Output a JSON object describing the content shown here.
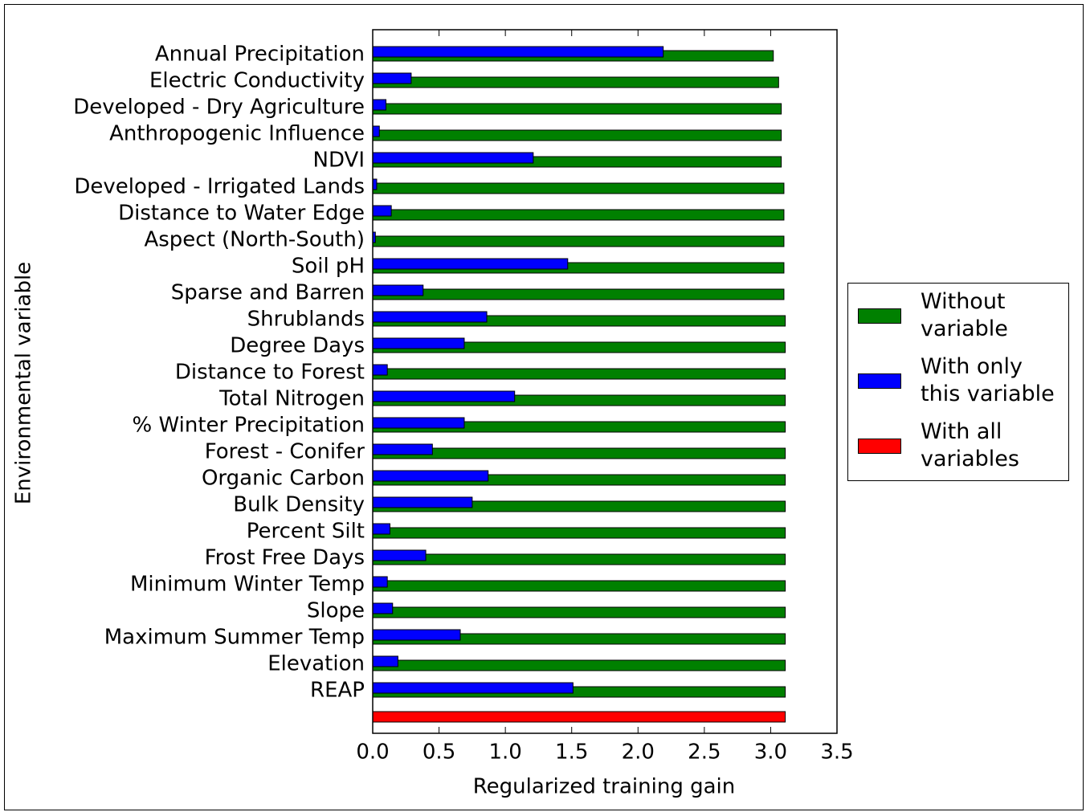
{
  "chart_data": {
    "type": "barh",
    "ylabel": "Environmental variable",
    "xlabel": "Regularized training gain",
    "categories": [
      "Annual Precipitation",
      "Electric Conductivity",
      "Developed - Dry Agriculture",
      "Anthropogenic Influence",
      "NDVI",
      "Developed - Irrigated Lands",
      "Distance to Water Edge",
      "Aspect (North-South)",
      "Soil pH",
      "Sparse and Barren",
      "Shrublands",
      "Degree Days",
      "Distance to Forest",
      "Total Nitrogen",
      "% Winter Precipitation",
      "Forest - Conifer",
      "Organic Carbon",
      "Bulk Density",
      "Percent Silt",
      "Frost Free Days",
      "Minimum Winter Temp",
      "Slope",
      "Maximum Summer Temp",
      "Elevation",
      "REAP",
      null
    ],
    "series": [
      {
        "name": "Without variable",
        "color": "#008000",
        "values": [
          3.02,
          3.06,
          3.08,
          3.08,
          3.08,
          3.1,
          3.1,
          3.1,
          3.1,
          3.1,
          3.11,
          3.11,
          3.11,
          3.11,
          3.11,
          3.11,
          3.11,
          3.11,
          3.11,
          3.11,
          3.11,
          3.11,
          3.11,
          3.11,
          3.11,
          null
        ]
      },
      {
        "name": "With only this variable",
        "color": "#0000ff",
        "values": [
          2.19,
          0.29,
          0.1,
          0.05,
          1.21,
          0.03,
          0.14,
          0.02,
          1.47,
          0.38,
          0.86,
          0.69,
          0.11,
          1.07,
          0.69,
          0.45,
          0.87,
          0.75,
          0.13,
          0.4,
          0.11,
          0.15,
          0.66,
          0.19,
          1.51,
          null
        ]
      },
      {
        "name": "With all variables",
        "color": "#ff0000",
        "values": [
          null,
          null,
          null,
          null,
          null,
          null,
          null,
          null,
          null,
          null,
          null,
          null,
          null,
          null,
          null,
          null,
          null,
          null,
          null,
          null,
          null,
          null,
          null,
          null,
          null,
          3.11
        ]
      }
    ],
    "xlim": [
      0,
      3.5
    ],
    "xticks": [
      {
        "value": 0,
        "label": "0.0"
      },
      0.5,
      {
        "value": 1,
        "label": "1.0"
      },
      1.5,
      {
        "value": 2,
        "label": "2.0"
      },
      2.5,
      {
        "value": 3,
        "label": "3.0"
      },
      3.5
    ],
    "legend": "outside right"
  }
}
